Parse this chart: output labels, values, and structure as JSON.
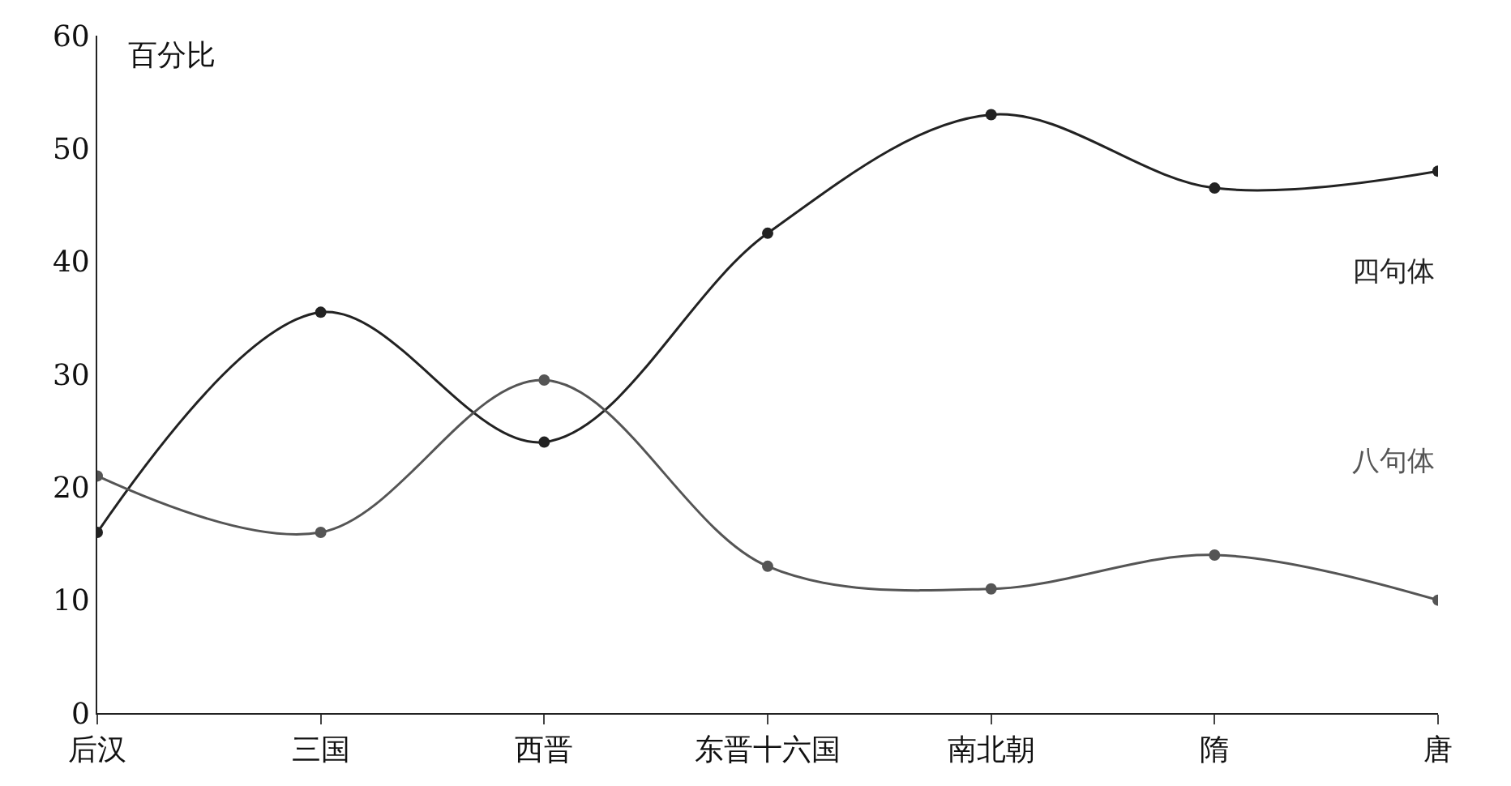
{
  "chart_data": {
    "type": "line",
    "ylabel": "百分比",
    "categories": [
      "后汉",
      "三国",
      "西晋",
      "东晋十六国",
      "南北朝",
      "隋",
      "唐"
    ],
    "series": [
      {
        "name": "四句体",
        "color": "#222222",
        "values": [
          16,
          35.5,
          24,
          42.5,
          53,
          46.5,
          48
        ]
      },
      {
        "name": "八句体",
        "color": "#555555",
        "values": [
          21,
          16,
          29.5,
          13,
          11,
          14,
          10
        ]
      }
    ],
    "ylim": [
      0,
      60
    ],
    "yticks": [
      0,
      10,
      20,
      30,
      40,
      50,
      60
    ],
    "legend": false,
    "marker": "circle",
    "line_style": "solid"
  }
}
